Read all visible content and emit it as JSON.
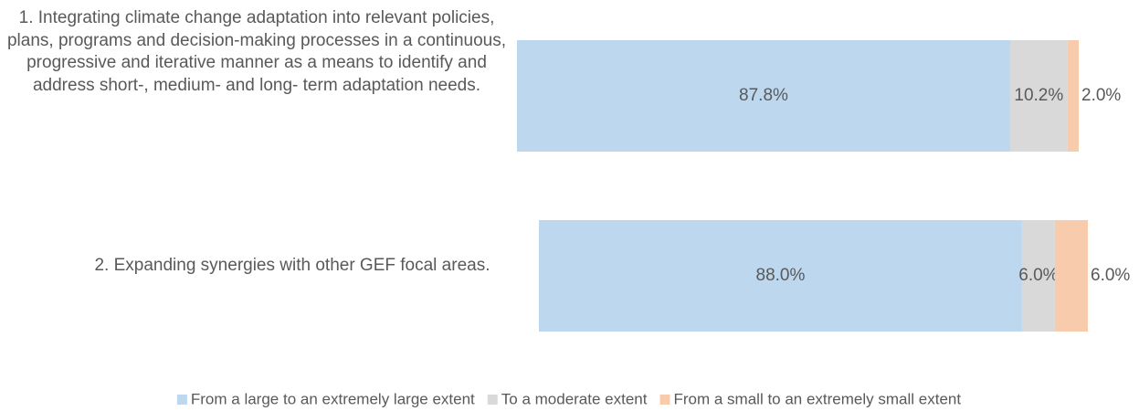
{
  "chart_data": {
    "type": "stacked_barh",
    "categories": [
      "1. Integrating climate change adaptation into relevant policies, plans, programs and decision-making processes in a continuous, progressive and iterative manner as a means to identify and address short-, medium- and long- term adaptation needs.",
      "2. Expanding synergies with other GEF focal areas."
    ],
    "series": [
      {
        "name": "From a large to an extremely large extent",
        "color": "#bdd7ee",
        "values": [
          87.8,
          88.0
        ],
        "value_labels": [
          "87.8%",
          "88.0%"
        ]
      },
      {
        "name": "To a moderate extent",
        "color": "#d9d9d9",
        "values": [
          10.2,
          6.0
        ],
        "value_labels": [
          "10.2%",
          "6.0%"
        ]
      },
      {
        "name": "From a small to an extremely small extent",
        "color": "#f8cbad",
        "values": [
          2.0,
          6.0
        ],
        "value_labels": [
          "2.0%",
          "6.0%"
        ]
      }
    ],
    "xlim": [
      0,
      100
    ],
    "legend": "bottom"
  }
}
